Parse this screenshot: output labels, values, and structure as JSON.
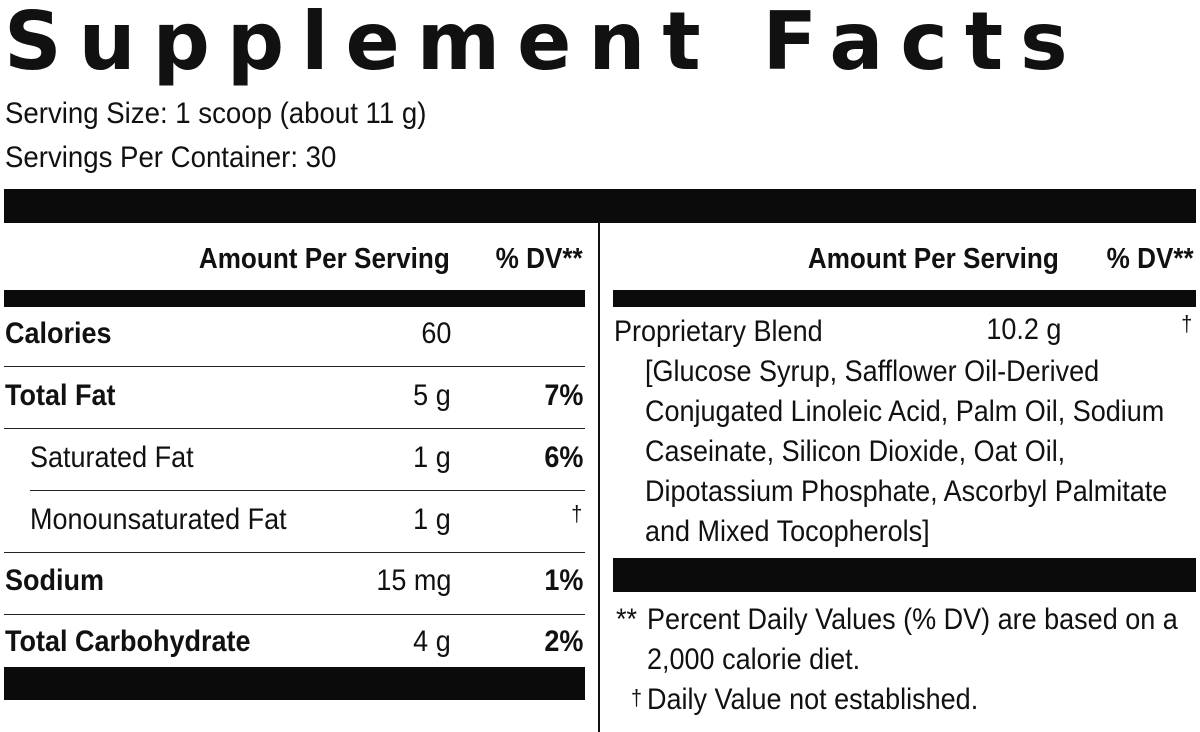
{
  "title": "Supplement Facts",
  "serving_size": "Serving Size: 1 scoop (about 11 g)",
  "servings_per_container": "Servings Per Container: 30",
  "left_table": {
    "header_amount": "Amount Per Serving",
    "header_dv": "% DV**",
    "rows": [
      {
        "label": "Calories",
        "amount": "60",
        "dv": "",
        "bold": true
      },
      {
        "label": "Total Fat",
        "amount": "5 g",
        "dv": "7%",
        "bold": true
      },
      {
        "label": "Saturated Fat",
        "amount": "1 g",
        "dv": "6%",
        "bold": false
      },
      {
        "label": "Monounsaturated Fat",
        "amount": "1 g",
        "dv": "†",
        "bold": false
      },
      {
        "label": "Sodium",
        "amount": "15 mg",
        "dv": "1%",
        "bold": true
      },
      {
        "label": "Total Carbohydrate",
        "amount": "4 g",
        "dv": "2%",
        "bold": true
      }
    ]
  },
  "right_table": {
    "header_amount": "Amount Per Serving",
    "header_dv": "% DV**",
    "blend_label": "Proprietary Blend",
    "blend_amount": "10.2 g",
    "blend_dv": "†",
    "ingredients_lines": [
      "[Glucose Syrup, Safflower Oil-Derived",
      "Conjugated Linoleic Acid, Palm Oil, Sodium",
      "Caseinate, Silicon Dioxide, Oat Oil,",
      "Dipotassium Phosphate, Ascorbyl Palmitate",
      "and Mixed Tocopherols]"
    ]
  },
  "footnotes": {
    "dv_mark": "**",
    "dv_line1": "Percent Daily Values (% DV) are based on a",
    "dv_line2": "2,000 calorie diet.",
    "dagger_mark": "†",
    "dagger_text": "Daily Value not established."
  }
}
